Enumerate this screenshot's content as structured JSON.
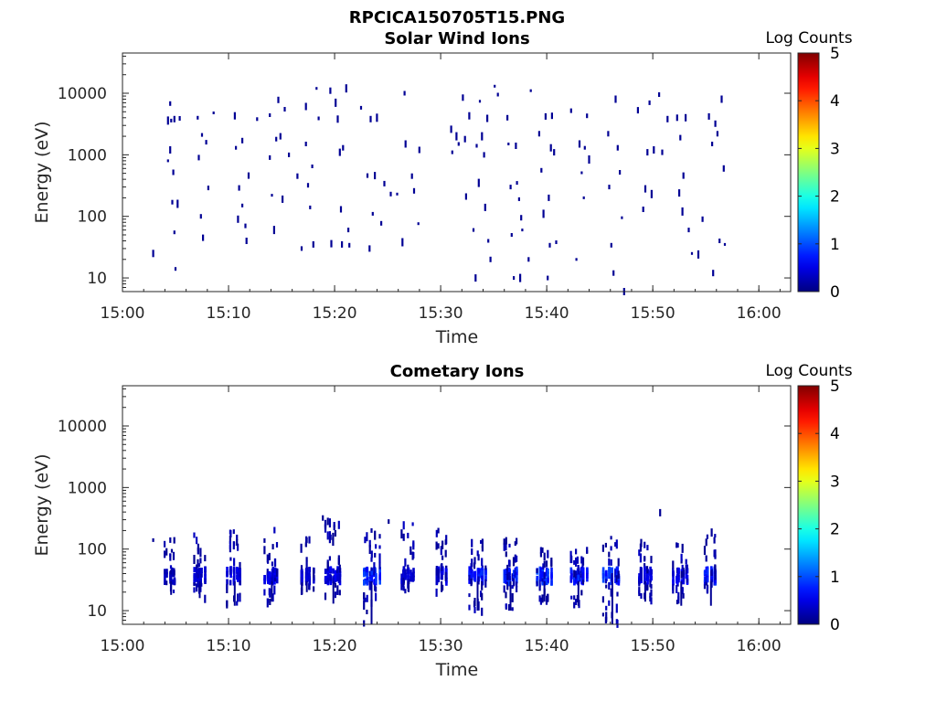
{
  "figure_title": "RPCICA150705T15.PNG",
  "chart_data": [
    {
      "type": "heatmap",
      "title": "Solar Wind Ions",
      "xlabel": "Time",
      "ylabel": "Energy (eV)",
      "xlim_minutes": [
        0,
        63
      ],
      "x_tick_minutes": [
        0,
        10,
        20,
        30,
        40,
        50,
        60
      ],
      "x_tick_labels": [
        "15:00",
        "15:10",
        "15:20",
        "15:30",
        "15:40",
        "15:50",
        "16:00"
      ],
      "y_scale": "log",
      "ylim": [
        6,
        45000
      ],
      "y_ticks": [
        10,
        100,
        1000,
        10000
      ],
      "y_tick_labels": [
        "10",
        "100",
        "1000",
        "10000"
      ],
      "colorbar": {
        "label": "Log Counts",
        "range": [
          0,
          5
        ],
        "ticks": [
          "0",
          "1",
          "2",
          "3",
          "4",
          "5"
        ],
        "colormap": "jet"
      },
      "points": [
        [
          2.8,
          25,
          0.1
        ],
        [
          4.2,
          3600,
          0.1
        ],
        [
          4.2,
          800,
          0.1
        ],
        [
          4.4,
          6800,
          0.1
        ],
        [
          4.4,
          1200,
          0.1
        ],
        [
          4.5,
          3600,
          0.1
        ],
        [
          4.6,
          170,
          0.1
        ],
        [
          4.7,
          520,
          0.1
        ],
        [
          4.8,
          3800,
          0.1
        ],
        [
          4.8,
          55,
          0.1
        ],
        [
          4.9,
          14,
          0.1
        ],
        [
          5.1,
          160,
          0.1
        ],
        [
          5.3,
          3900,
          0.1
        ],
        [
          7.0,
          4000,
          0.1
        ],
        [
          7.1,
          900,
          0.1
        ],
        [
          7.3,
          100,
          0.1
        ],
        [
          7.4,
          2100,
          0.1
        ],
        [
          7.5,
          45,
          0.1
        ],
        [
          7.8,
          1600,
          0.1
        ],
        [
          8.0,
          290,
          0.1
        ],
        [
          8.5,
          4800,
          0.1
        ],
        [
          10.5,
          4300,
          0.1
        ],
        [
          10.6,
          1300,
          0.1
        ],
        [
          10.8,
          90,
          0.1
        ],
        [
          10.9,
          290,
          0.1
        ],
        [
          11.2,
          150,
          0.1
        ],
        [
          11.2,
          1700,
          0.1
        ],
        [
          11.5,
          70,
          0.1
        ],
        [
          11.6,
          40,
          0.1
        ],
        [
          11.8,
          460,
          0.1
        ],
        [
          12.6,
          3800,
          0.1
        ],
        [
          13.8,
          4400,
          0.1
        ],
        [
          13.8,
          900,
          0.1
        ],
        [
          14.0,
          220,
          0.1
        ],
        [
          14.2,
          60,
          0.1
        ],
        [
          14.4,
          1800,
          0.1
        ],
        [
          14.6,
          7800,
          0.1
        ],
        [
          14.8,
          2000,
          0.1
        ],
        [
          15.0,
          190,
          0.1
        ],
        [
          15.2,
          5500,
          0.1
        ],
        [
          15.6,
          1000,
          0.1
        ],
        [
          16.4,
          450,
          0.1
        ],
        [
          16.8,
          30,
          0.1
        ],
        [
          17.2,
          6100,
          0.1
        ],
        [
          17.2,
          1500,
          0.1
        ],
        [
          17.4,
          320,
          0.1
        ],
        [
          17.6,
          140,
          0.1
        ],
        [
          17.8,
          650,
          0.1
        ],
        [
          17.9,
          35,
          0.1
        ],
        [
          18.2,
          12000,
          0.1
        ],
        [
          18.4,
          3900,
          0.1
        ],
        [
          19.5,
          11000,
          0.1
        ],
        [
          19.6,
          36,
          0.1
        ],
        [
          20.0,
          7000,
          0.1
        ],
        [
          20.2,
          3800,
          0.1
        ],
        [
          20.4,
          1100,
          0.1
        ],
        [
          20.5,
          130,
          0.1
        ],
        [
          20.6,
          35,
          0.1
        ],
        [
          20.7,
          1300,
          0.1
        ],
        [
          21.0,
          12000,
          0.1
        ],
        [
          21.2,
          60,
          0.1
        ],
        [
          21.3,
          34,
          0.1
        ],
        [
          22.4,
          5800,
          0.1
        ],
        [
          23.0,
          460,
          0.1
        ],
        [
          23.2,
          30,
          0.1
        ],
        [
          23.3,
          3800,
          0.1
        ],
        [
          23.5,
          110,
          0.1
        ],
        [
          23.7,
          460,
          0.1
        ],
        [
          23.9,
          4000,
          0.1
        ],
        [
          24.3,
          77,
          0.1
        ],
        [
          24.6,
          340,
          0.1
        ],
        [
          25.2,
          230,
          0.1
        ],
        [
          25.8,
          230,
          0.1
        ],
        [
          26.3,
          38,
          0.1
        ],
        [
          26.5,
          10000,
          0.1
        ],
        [
          26.6,
          1500,
          0.1
        ],
        [
          27.2,
          450,
          0.1
        ],
        [
          27.4,
          260,
          0.1
        ],
        [
          27.8,
          76,
          0.1
        ],
        [
          27.9,
          1200,
          0.1
        ],
        [
          30.9,
          2600,
          0.1
        ],
        [
          31.0,
          1100,
          0.1
        ],
        [
          31.4,
          2000,
          0.1
        ],
        [
          31.6,
          1500,
          0.1
        ],
        [
          32.0,
          8500,
          0.1
        ],
        [
          32.2,
          1800,
          0.1
        ],
        [
          32.3,
          210,
          0.1
        ],
        [
          32.6,
          4300,
          0.1
        ],
        [
          33.0,
          60,
          0.1
        ],
        [
          33.2,
          10,
          0.1
        ],
        [
          33.3,
          1400,
          0.1
        ],
        [
          33.5,
          350,
          0.1
        ],
        [
          33.6,
          7400,
          0.1
        ],
        [
          33.8,
          2000,
          0.1
        ],
        [
          34.0,
          1000,
          0.1
        ],
        [
          34.1,
          140,
          0.1
        ],
        [
          34.3,
          3900,
          0.1
        ],
        [
          34.4,
          40,
          0.1
        ],
        [
          34.6,
          20,
          0.1
        ],
        [
          35.0,
          13000,
          0.1
        ],
        [
          35.3,
          9500,
          0.1
        ],
        [
          36.2,
          4000,
          0.1
        ],
        [
          36.3,
          1500,
          0.1
        ],
        [
          36.5,
          300,
          0.1
        ],
        [
          36.6,
          50,
          0.1
        ],
        [
          36.8,
          10,
          0.1
        ],
        [
          37.0,
          1400,
          0.1
        ],
        [
          37.1,
          350,
          0.1
        ],
        [
          37.3,
          190,
          0.1
        ],
        [
          37.4,
          10,
          0.1
        ],
        [
          37.5,
          95,
          0.1
        ],
        [
          37.6,
          60,
          0.1
        ],
        [
          38.2,
          20,
          0.1
        ],
        [
          38.4,
          11000,
          0.1
        ],
        [
          39.2,
          2200,
          0.1
        ],
        [
          39.4,
          560,
          0.1
        ],
        [
          39.6,
          110,
          0.1
        ],
        [
          39.8,
          4200,
          0.1
        ],
        [
          40.0,
          10,
          0.1
        ],
        [
          40.1,
          200,
          0.1
        ],
        [
          40.2,
          34,
          0.1
        ],
        [
          40.3,
          1300,
          0.1
        ],
        [
          40.4,
          4300,
          0.1
        ],
        [
          40.6,
          1100,
          0.1
        ],
        [
          40.8,
          38,
          0.1
        ],
        [
          42.2,
          5200,
          0.1
        ],
        [
          42.7,
          20,
          0.1
        ],
        [
          43.0,
          1500,
          0.1
        ],
        [
          43.2,
          510,
          0.1
        ],
        [
          43.4,
          200,
          0.1
        ],
        [
          43.5,
          1300,
          0.1
        ],
        [
          43.7,
          4300,
          0.1
        ],
        [
          43.9,
          840,
          0.1
        ],
        [
          45.7,
          2200,
          0.1
        ],
        [
          45.8,
          300,
          0.1
        ],
        [
          46.0,
          34,
          0.1
        ],
        [
          46.2,
          12,
          0.1
        ],
        [
          46.4,
          8000,
          0.1
        ],
        [
          46.6,
          1300,
          0.1
        ],
        [
          46.8,
          520,
          0.1
        ],
        [
          47.0,
          95,
          0.1
        ],
        [
          47.2,
          6,
          0.1
        ],
        [
          48.5,
          5300,
          0.1
        ],
        [
          49.0,
          130,
          0.1
        ],
        [
          49.2,
          280,
          0.1
        ],
        [
          49.4,
          1100,
          0.1
        ],
        [
          49.6,
          7000,
          0.1
        ],
        [
          49.8,
          230,
          0.1
        ],
        [
          50.0,
          1200,
          0.1
        ],
        [
          50.5,
          9500,
          0.1
        ],
        [
          50.8,
          1100,
          0.1
        ],
        [
          51.3,
          3800,
          0.1
        ],
        [
          52.2,
          4000,
          0.1
        ],
        [
          52.4,
          240,
          0.1
        ],
        [
          52.5,
          1900,
          0.1
        ],
        [
          52.7,
          120,
          0.1
        ],
        [
          52.8,
          460,
          0.1
        ],
        [
          53.0,
          4000,
          0.1
        ],
        [
          53.3,
          60,
          0.1
        ],
        [
          53.6,
          25,
          0.1
        ],
        [
          54.2,
          24,
          0.1
        ],
        [
          54.6,
          90,
          0.1
        ],
        [
          55.2,
          4200,
          0.1
        ],
        [
          55.5,
          1500,
          0.1
        ],
        [
          55.6,
          12,
          0.1
        ],
        [
          55.8,
          3200,
          0.1
        ],
        [
          56.0,
          2200,
          0.1
        ],
        [
          56.2,
          40,
          0.1
        ],
        [
          56.4,
          8000,
          0.1
        ],
        [
          56.6,
          600,
          0.1
        ],
        [
          56.7,
          35,
          0.1
        ]
      ]
    },
    {
      "type": "heatmap",
      "title": "Cometary Ions",
      "xlabel": "Time",
      "ylabel": "Energy (eV)",
      "xlim_minutes": [
        0,
        63
      ],
      "x_tick_minutes": [
        0,
        10,
        20,
        30,
        40,
        50,
        60
      ],
      "x_tick_labels": [
        "15:00",
        "15:10",
        "15:20",
        "15:30",
        "15:40",
        "15:50",
        "16:00"
      ],
      "y_scale": "log",
      "ylim": [
        6,
        45000
      ],
      "y_ticks": [
        10,
        100,
        1000,
        10000
      ],
      "y_tick_labels": [
        "10",
        "100",
        "1000",
        "10000"
      ],
      "colorbar": {
        "label": "Log Counts",
        "range": [
          0,
          5
        ],
        "ticks": [
          "0",
          "1",
          "2",
          "3",
          "4",
          "5"
        ],
        "colormap": "jet"
      },
      "bursts": [
        {
          "t": 4.5,
          "top": 150,
          "bottom": 18,
          "peak": 0.4,
          "width": 1.0
        },
        {
          "t": 7.2,
          "top": 170,
          "bottom": 16,
          "peak": 0.5,
          "width": 1.1
        },
        {
          "t": 10.5,
          "top": 200,
          "bottom": 12,
          "peak": 0.6,
          "width": 1.2
        },
        {
          "t": 14.0,
          "top": 220,
          "bottom": 14,
          "peak": 0.6,
          "width": 1.4
        },
        {
          "t": 17.3,
          "top": 200,
          "bottom": 20,
          "peak": 0.5,
          "width": 1.3
        },
        {
          "t": 19.8,
          "top": 300,
          "bottom": 13,
          "peak": 0.6,
          "width": 1.5
        },
        {
          "t": 23.4,
          "top": 250,
          "bottom": 6,
          "peak": 1.0,
          "width": 1.5
        },
        {
          "t": 26.9,
          "top": 260,
          "bottom": 20,
          "peak": 0.5,
          "width": 1.3
        },
        {
          "t": 30.0,
          "top": 200,
          "bottom": 20,
          "peak": 0.6,
          "width": 1.2
        },
        {
          "t": 33.4,
          "top": 150,
          "bottom": 10,
          "peak": 0.9,
          "width": 1.5
        },
        {
          "t": 36.5,
          "top": 150,
          "bottom": 10,
          "peak": 0.9,
          "width": 1.4
        },
        {
          "t": 39.7,
          "top": 100,
          "bottom": 14,
          "peak": 1.1,
          "width": 1.3
        },
        {
          "t": 42.9,
          "top": 120,
          "bottom": 12,
          "peak": 0.9,
          "width": 1.6
        },
        {
          "t": 46.1,
          "top": 150,
          "bottom": 6,
          "peak": 1.1,
          "width": 1.6
        },
        {
          "t": 49.2,
          "top": 140,
          "bottom": 14,
          "peak": 0.6,
          "width": 1.3
        },
        {
          "t": 52.6,
          "top": 120,
          "bottom": 12,
          "peak": 0.7,
          "width": 1.4
        },
        {
          "t": 55.4,
          "top": 200,
          "bottom": 12,
          "peak": 0.9,
          "width": 1.3
        }
      ],
      "points": [
        [
          50.6,
          390,
          0.1
        ],
        [
          25.0,
          280,
          0.1
        ],
        [
          18.8,
          320,
          0.1
        ],
        [
          2.8,
          140,
          0.1
        ]
      ]
    }
  ]
}
